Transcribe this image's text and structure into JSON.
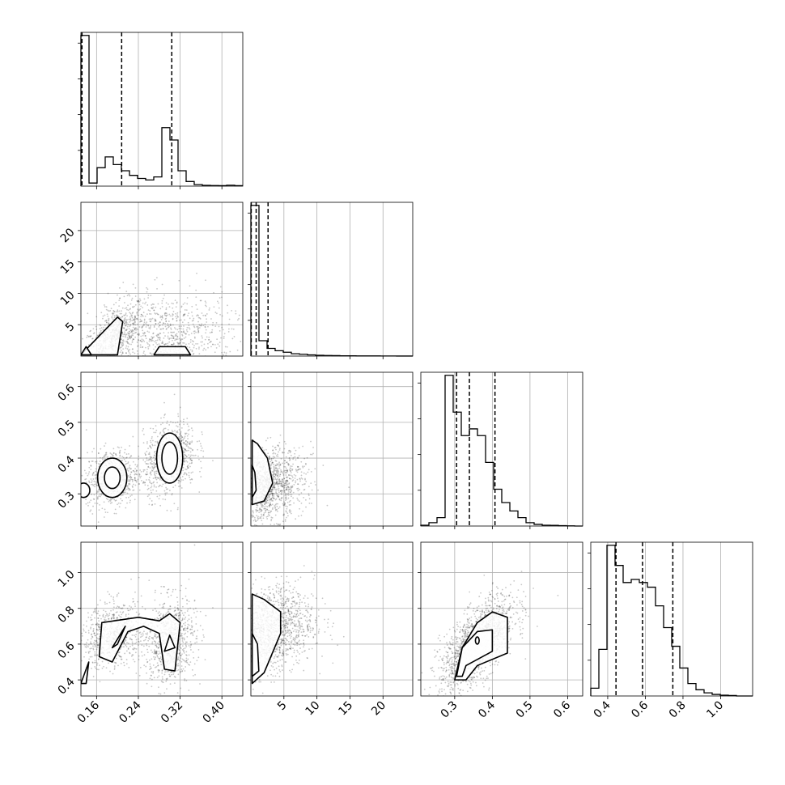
{
  "chart_data": {
    "type": "corner",
    "ticks": {
      "p0": [
        "0.16",
        "0.24",
        "0.32",
        "0.40"
      ],
      "p1": [
        "5",
        "10",
        "15",
        "20"
      ],
      "p2": [
        "0.3",
        "0.4",
        "0.5",
        "0.6"
      ],
      "p3": [
        "0.4",
        "0.6",
        "0.8",
        "1.0"
      ]
    },
    "tick_values": {
      "p0": [
        0.16,
        0.24,
        0.32,
        0.4
      ],
      "p1": [
        5,
        10,
        15,
        20
      ],
      "p2": [
        0.3,
        0.4,
        0.5,
        0.6
      ],
      "p3": [
        0.4,
        0.6,
        0.8,
        1.0
      ]
    },
    "ranges": {
      "p0": [
        0.13,
        0.44
      ],
      "p1": [
        0,
        24.5
      ],
      "p2": [
        0.21,
        0.64
      ],
      "p3": [
        0.31,
        1.17
      ]
    },
    "histograms": {
      "p0": {
        "edges": [
          0.13,
          0.1455,
          0.161,
          0.1765,
          0.192,
          0.2075,
          0.223,
          0.2385,
          0.254,
          0.2695,
          0.285,
          0.3005,
          0.316,
          0.3315,
          0.347,
          0.3625,
          0.378,
          0.3935,
          0.409,
          0.4245,
          0.44
        ],
        "counts": [
          0.98,
          0.02,
          0.12,
          0.19,
          0.14,
          0.1,
          0.07,
          0.05,
          0.04,
          0.06,
          0.38,
          0.3,
          0.1,
          0.03,
          0.01,
          0.005,
          0.004,
          0.003,
          0.006,
          0.003
        ]
      },
      "p1": {
        "edges": [
          0,
          1.225,
          2.45,
          3.675,
          4.9,
          6.125,
          7.35,
          8.575,
          9.8,
          11.025,
          12.25,
          13.475,
          14.7,
          15.925,
          17.15,
          18.375,
          19.6,
          20.825,
          22.05,
          23.275,
          24.5
        ],
        "counts": [
          0.98,
          0.1,
          0.05,
          0.035,
          0.025,
          0.015,
          0.012,
          0.008,
          0.005,
          0.004,
          0.003,
          0.002,
          0.002,
          0.001,
          0.001,
          0.001,
          0.0005,
          0.0005,
          0.0003,
          0.0002
        ]
      },
      "p2": {
        "edges": [
          0.21,
          0.2315,
          0.253,
          0.2745,
          0.296,
          0.3175,
          0.339,
          0.3605,
          0.382,
          0.4035,
          0.425,
          0.4465,
          0.468,
          0.4895,
          0.511,
          0.5325,
          0.554,
          0.5755,
          0.597,
          0.6185,
          0.64
        ],
        "counts": [
          0.005,
          0.02,
          0.05,
          0.9,
          0.68,
          0.54,
          0.58,
          0.54,
          0.38,
          0.22,
          0.14,
          0.09,
          0.05,
          0.02,
          0.01,
          0.005,
          0.004,
          0.002,
          0.001,
          0.0
        ]
      },
      "p3": {
        "edges": [
          0.31,
          0.353,
          0.396,
          0.439,
          0.482,
          0.525,
          0.568,
          0.611,
          0.654,
          0.697,
          0.74,
          0.783,
          0.826,
          0.869,
          0.912,
          0.955,
          0.998,
          1.041,
          1.084,
          1.127,
          1.17
        ],
        "counts": [
          0.05,
          0.3,
          0.97,
          0.84,
          0.73,
          0.75,
          0.73,
          0.7,
          0.58,
          0.44,
          0.32,
          0.18,
          0.08,
          0.04,
          0.02,
          0.01,
          0.005,
          0.003,
          0.0,
          0.0
        ]
      }
    },
    "quantiles": {
      "p0": [
        0.132,
        0.208,
        0.304
      ],
      "p1": [
        0.05,
        0.8,
        2.6
      ],
      "p2": [
        0.305,
        0.339,
        0.407
      ],
      "p3": [
        0.444,
        0.585,
        0.746
      ]
    },
    "pairs": [
      {
        "x": "p0",
        "y": "p1",
        "modes": [
          {
            "mx": 0.195,
            "my": 3.0,
            "sx": 0.03,
            "sy": 2.8,
            "r": 0.55,
            "w": 0.45
          },
          {
            "mx": 0.3,
            "my": 3.0,
            "sx": 0.06,
            "sy": 3.5,
            "r": 0.0,
            "w": 0.55
          }
        ],
        "contours": [
          {
            "pts": [
              [
                0.13,
                0.2
              ],
              [
                0.2,
                6.2
              ],
              [
                0.21,
                5.5
              ],
              [
                0.2,
                0.2
              ]
            ],
            "closed": true
          },
          {
            "pts": [
              [
                0.13,
                0.2
              ],
              [
                0.14,
                1.5
              ],
              [
                0.15,
                0.2
              ]
            ],
            "closed": true
          },
          {
            "pts": [
              [
                0.27,
                0.2
              ],
              [
                0.28,
                1.5
              ],
              [
                0.33,
                1.5
              ],
              [
                0.34,
                0.2
              ]
            ],
            "closed": true
          }
        ]
      },
      {
        "x": "p0",
        "y": "p2",
        "modes": [
          {
            "mx": 0.19,
            "my": 0.345,
            "sx": 0.025,
            "sy": 0.04,
            "r": 0.1,
            "w": 0.45
          },
          {
            "mx": 0.3,
            "my": 0.4,
            "sx": 0.025,
            "sy": 0.05,
            "r": 0.25,
            "w": 0.55
          }
        ],
        "contours": [
          {
            "pts": [
              [
                0.19,
                0.345
              ]
            ],
            "rx": 0.028,
            "ry": 0.055,
            "closed": true
          },
          {
            "pts": [
              [
                0.19,
                0.345
              ]
            ],
            "rx": 0.015,
            "ry": 0.03,
            "closed": true
          },
          {
            "pts": [
              [
                0.3,
                0.4
              ]
            ],
            "rx": 0.025,
            "ry": 0.07,
            "closed": true
          },
          {
            "pts": [
              [
                0.3,
                0.4
              ]
            ],
            "rx": 0.015,
            "ry": 0.045,
            "closed": true
          },
          {
            "pts": [
              [
                0.135,
                0.31
              ]
            ],
            "rx": 0.012,
            "ry": 0.02,
            "closed": true
          }
        ]
      },
      {
        "x": "p1",
        "y": "p2",
        "modes": [
          {
            "mx": 2.0,
            "my": 0.32,
            "sx": 3.0,
            "sy": 0.05,
            "r": 0.2,
            "w": 1.0
          }
        ],
        "contours": [
          {
            "pts": [
              [
                0.2,
                0.27
              ],
              [
                2.0,
                0.28
              ],
              [
                3.3,
                0.33
              ],
              [
                2.5,
                0.4
              ],
              [
                1.0,
                0.44
              ],
              [
                0.2,
                0.45
              ]
            ],
            "closed": true
          },
          {
            "pts": [
              [
                0.2,
                0.29
              ],
              [
                0.8,
                0.31
              ],
              [
                0.6,
                0.36
              ],
              [
                0.2,
                0.38
              ]
            ],
            "closed": true
          }
        ]
      },
      {
        "x": "p0",
        "y": "p3",
        "modes": [
          {
            "mx": 0.19,
            "my": 0.65,
            "sx": 0.03,
            "sy": 0.09,
            "r": 0.2,
            "w": 0.45
          },
          {
            "mx": 0.3,
            "my": 0.62,
            "sx": 0.025,
            "sy": 0.12,
            "r": 0.1,
            "w": 0.55
          }
        ],
        "contours": [
          {
            "pts": [
              [
                0.165,
                0.53
              ],
              [
                0.17,
                0.72
              ],
              [
                0.24,
                0.75
              ],
              [
                0.28,
                0.73
              ],
              [
                0.3,
                0.77
              ],
              [
                0.32,
                0.72
              ],
              [
                0.31,
                0.45
              ],
              [
                0.29,
                0.46
              ],
              [
                0.28,
                0.66
              ],
              [
                0.25,
                0.7
              ],
              [
                0.22,
                0.67
              ],
              [
                0.19,
                0.5
              ]
            ],
            "closed": true
          },
          {
            "pts": [
              [
                0.19,
                0.58
              ],
              [
                0.215,
                0.7
              ],
              [
                0.2,
                0.6
              ]
            ],
            "closed": true
          },
          {
            "pts": [
              [
                0.29,
                0.56
              ],
              [
                0.3,
                0.65
              ],
              [
                0.31,
                0.58
              ]
            ],
            "closed": true
          },
          {
            "pts": [
              [
                0.13,
                0.38
              ],
              [
                0.145,
                0.5
              ],
              [
                0.14,
                0.38
              ]
            ],
            "closed": true
          }
        ]
      },
      {
        "x": "p1",
        "y": "p3",
        "modes": [
          {
            "mx": 2.5,
            "my": 0.68,
            "sx": 3.5,
            "sy": 0.12,
            "r": 0.2,
            "w": 1.0
          }
        ],
        "contours": [
          {
            "pts": [
              [
                0.2,
                0.38
              ],
              [
                2.0,
                0.44
              ],
              [
                4.5,
                0.66
              ],
              [
                4.5,
                0.78
              ],
              [
                2.0,
                0.85
              ],
              [
                0.2,
                0.88
              ]
            ],
            "closed": true
          },
          {
            "pts": [
              [
                0.2,
                0.42
              ],
              [
                1.2,
                0.45
              ],
              [
                1.0,
                0.6
              ],
              [
                0.2,
                0.66
              ]
            ],
            "closed": true
          }
        ]
      },
      {
        "x": "p2",
        "y": "p3",
        "modes": [
          {
            "mx": 0.36,
            "my": 0.6,
            "sx": 0.05,
            "sy": 0.13,
            "r": 0.65,
            "w": 1.0
          }
        ],
        "contours": [
          {
            "pts": [
              [
                0.3,
                0.4
              ],
              [
                0.32,
                0.58
              ],
              [
                0.36,
                0.72
              ],
              [
                0.4,
                0.78
              ],
              [
                0.44,
                0.75
              ],
              [
                0.44,
                0.55
              ],
              [
                0.36,
                0.48
              ],
              [
                0.33,
                0.4
              ]
            ],
            "closed": true
          },
          {
            "pts": [
              [
                0.305,
                0.42
              ],
              [
                0.32,
                0.58
              ],
              [
                0.36,
                0.67
              ],
              [
                0.4,
                0.68
              ],
              [
                0.4,
                0.56
              ],
              [
                0.33,
                0.48
              ],
              [
                0.32,
                0.42
              ]
            ],
            "closed": true
          },
          {
            "pts": [
              [
                0.36,
                0.62
              ]
            ],
            "rx": 0.005,
            "ry": 0.02,
            "closed": true
          }
        ]
      }
    ]
  }
}
